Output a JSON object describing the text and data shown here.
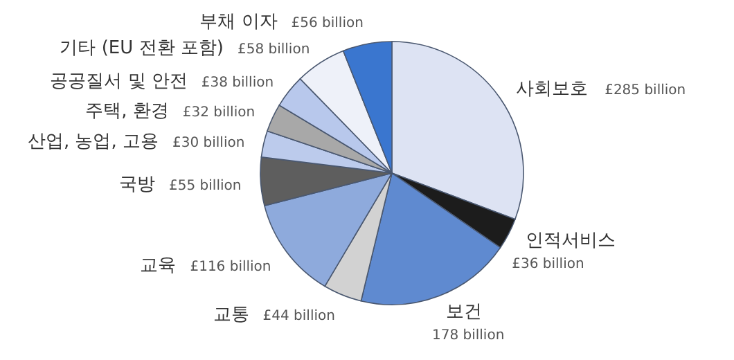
{
  "chart_data": {
    "type": "pie",
    "categories": [
      "사회보호",
      "인적서비스",
      "보건",
      "교통",
      "교육",
      "국방",
      "산업, 농업, 고용",
      "주택, 환경",
      "공공질서 및 안전",
      "기타 (EU 전환 포함)",
      "부채 이자"
    ],
    "values": [
      285,
      36,
      178,
      44,
      116,
      55,
      30,
      32,
      38,
      58,
      56
    ],
    "colors": [
      "#dde3f3",
      "#1c1c1c",
      "#5f8ad0",
      "#d2d2d2",
      "#8eaadc",
      "#5e5e5e",
      "#bccbec",
      "#a8a8a8",
      "#b8c8ec",
      "#eef1f9",
      "#3a76cf"
    ],
    "value_labels": [
      "£285 billion",
      "£36 billion",
      "178 billion",
      "£44 billion",
      "£116 billion",
      "£55 billion",
      "£30 billion",
      "£32 billion",
      "£38 billion",
      "£58 billion",
      "£56 billion"
    ]
  }
}
